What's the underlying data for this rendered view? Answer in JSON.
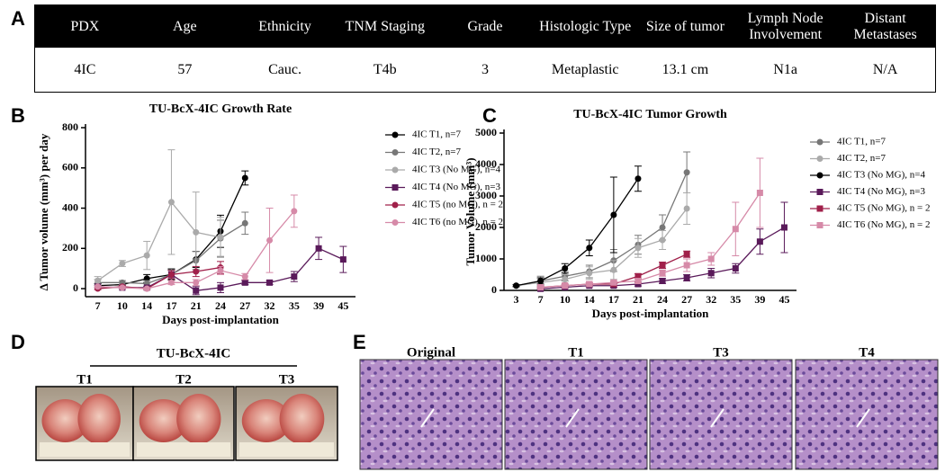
{
  "panels": [
    "A",
    "B",
    "C",
    "D",
    "E"
  ],
  "table": {
    "header": [
      "PDX",
      "Age",
      "Ethnicity",
      "TNM Staging",
      "Grade",
      "Histologic Type",
      "Size of tumor",
      "Lymph Node Involvement",
      "Distant Metastases"
    ],
    "rows": [
      [
        "4IC",
        "57",
        "Cauc.",
        "T4b",
        "3",
        "Metaplastic",
        "13.1 cm",
        "N1a",
        "N/A"
      ]
    ]
  },
  "chart_data": [
    {
      "type": "line",
      "title": "TU-BcX-4IC Growth Rate",
      "x_label": "Days post-implantation",
      "y_label": "Δ Tumor volume (mm³) per day",
      "categories": [
        "7",
        "10",
        "14",
        "17",
        "21",
        "24",
        "27",
        "32",
        "35",
        "39",
        "45"
      ],
      "ylim": [
        -40,
        800
      ],
      "yticks": [
        0,
        200,
        400,
        600,
        800
      ],
      "series": [
        {
          "name": "4IC T1, n=7",
          "color": "#000000",
          "marker": "circle",
          "values": [
            15,
            20,
            50,
            70,
            145,
            285,
            550,
            null,
            null,
            null,
            null
          ],
          "errors": [
            10,
            10,
            20,
            25,
            40,
            80,
            35,
            null,
            null,
            null,
            null
          ]
        },
        {
          "name": "4IC T2, n=7",
          "color": "#777777",
          "marker": "circle",
          "values": [
            30,
            30,
            25,
            70,
            140,
            250,
            325,
            null,
            null,
            null,
            null
          ],
          "errors": [
            15,
            10,
            15,
            30,
            45,
            90,
            55,
            null,
            null,
            null,
            null
          ]
        },
        {
          "name": "4IC T3 (No MG), n=4",
          "color": "#aaaaaa",
          "marker": "circle",
          "values": [
            40,
            125,
            165,
            430,
            280,
            255,
            null,
            null,
            null,
            null,
            null
          ],
          "errors": [
            20,
            15,
            70,
            260,
            200,
            100,
            null,
            null,
            null,
            null,
            null
          ]
        },
        {
          "name": "4IC T4 (No MG), n=3",
          "color": "#5a1a5a",
          "marker": "square",
          "values": [
            10,
            5,
            5,
            70,
            -10,
            5,
            30,
            30,
            60,
            200,
            145
          ],
          "errors": [
            5,
            5,
            5,
            20,
            20,
            25,
            10,
            10,
            25,
            55,
            65
          ]
        },
        {
          "name": "4IC T5 (no MG), n = 2",
          "color": "#a0204a",
          "marker": "circle",
          "values": [
            0,
            10,
            0,
            70,
            85,
            105,
            null,
            null,
            null,
            null,
            null
          ],
          "errors": [
            5,
            5,
            5,
            20,
            25,
            30,
            null,
            null,
            null,
            null,
            null
          ]
        },
        {
          "name": "4IC T6 (no MG), n = 2",
          "color": "#d68aa8",
          "marker": "circle",
          "values": [
            10,
            5,
            0,
            30,
            30,
            90,
            60,
            240,
            385,
            null,
            null
          ],
          "errors": [
            5,
            5,
            5,
            10,
            15,
            20,
            15,
            160,
            80,
            null,
            null
          ]
        }
      ]
    },
    {
      "type": "line",
      "title": "TU-BcX-4IC Tumor Growth",
      "x_label": "Days post-implantation",
      "y_label": "Tumor Volume (mm³)",
      "categories": [
        "3",
        "7",
        "10",
        "14",
        "17",
        "21",
        "24",
        "27",
        "32",
        "35",
        "39",
        "45"
      ],
      "ylim": [
        0,
        5000
      ],
      "yticks": [
        0,
        1000,
        2000,
        3000,
        4000,
        5000
      ],
      "series": [
        {
          "name": "4IC T1, n=7",
          "color": "#777777",
          "marker": "circle",
          "values": [
            150,
            300,
            450,
            600,
            950,
            1450,
            2000,
            3750,
            null,
            null,
            null,
            null
          ],
          "errors": [
            30,
            150,
            150,
            200,
            350,
            300,
            400,
            650,
            null,
            null,
            null,
            null
          ]
        },
        {
          "name": "4IC T2, n=7",
          "color": "#aaaaaa",
          "marker": "circle",
          "values": [
            150,
            250,
            350,
            550,
            650,
            1350,
            1600,
            2600,
            null,
            null,
            null,
            null
          ],
          "errors": [
            30,
            100,
            150,
            200,
            300,
            300,
            300,
            500,
            null,
            null,
            null,
            null
          ]
        },
        {
          "name": "4IC T3 (No MG), n=4",
          "color": "#000000",
          "marker": "circle",
          "values": [
            150,
            300,
            700,
            1350,
            2400,
            3550,
            null,
            null,
            null,
            null,
            null,
            null
          ],
          "errors": [
            30,
            100,
            150,
            250,
            1200,
            400,
            null,
            null,
            null,
            null,
            null,
            null
          ]
        },
        {
          "name": "4IC T4 (No MG), n=3",
          "color": "#5a1a5a",
          "marker": "square",
          "values": [
            null,
            50,
            100,
            150,
            150,
            200,
            300,
            400,
            550,
            700,
            1550,
            2000
          ],
          "errors": [
            null,
            20,
            30,
            40,
            50,
            60,
            80,
            100,
            150,
            150,
            400,
            800
          ]
        },
        {
          "name": "4IC T5 (No MG), n = 2",
          "color": "#a0204a",
          "marker": "square",
          "values": [
            null,
            100,
            150,
            200,
            200,
            450,
            800,
            1150,
            null,
            null,
            null,
            null
          ],
          "errors": [
            null,
            20,
            30,
            40,
            50,
            80,
            100,
            100,
            null,
            null,
            null,
            null
          ]
        },
        {
          "name": "4IC T6 (No MG), n = 2",
          "color": "#d68aa8",
          "marker": "square",
          "values": [
            null,
            100,
            150,
            200,
            250,
            300,
            550,
            800,
            1000,
            1950,
            3100,
            null
          ],
          "errors": [
            null,
            20,
            30,
            40,
            50,
            60,
            100,
            200,
            200,
            850,
            1100,
            null
          ]
        }
      ]
    }
  ],
  "panel_d": {
    "title": "TU-BcX-4IC",
    "labels": [
      "T1",
      "T2",
      "T3"
    ]
  },
  "panel_e": {
    "labels": [
      "Original",
      "T1",
      "T3",
      "T4"
    ]
  }
}
